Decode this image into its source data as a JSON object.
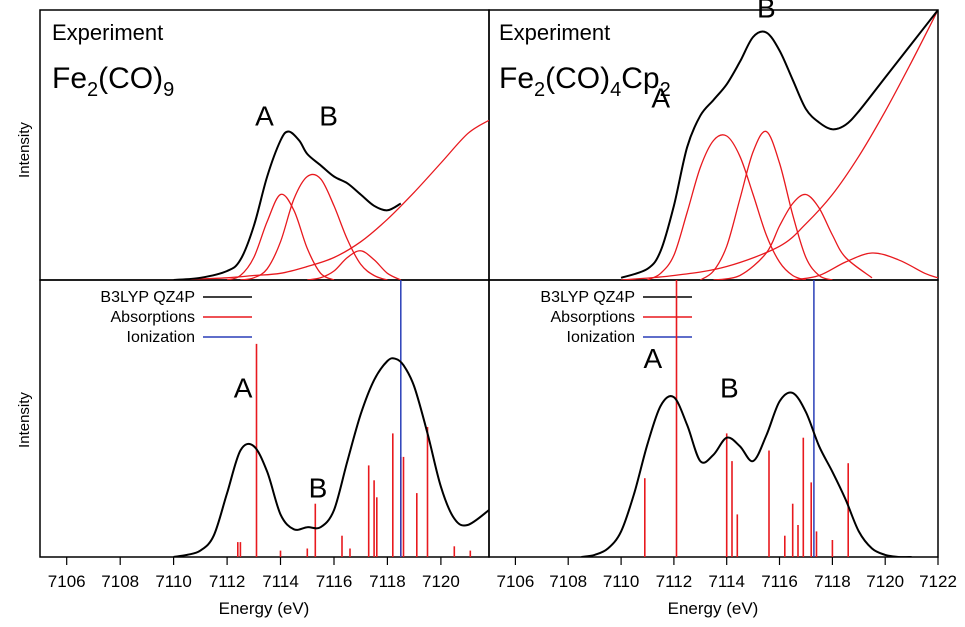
{
  "figure": {
    "ylabel": "Intensity",
    "xlabel": "Energy (eV)"
  },
  "colors": {
    "total": "#000000",
    "components": "#e8191e",
    "ionization": "#2a3fb8"
  },
  "chart_data": [
    {
      "type": "line",
      "panel": "top-left",
      "title": "Experiment",
      "compound": {
        "base": [
          "Fe",
          "(CO)"
        ],
        "subs": [
          "2",
          "9"
        ]
      },
      "xlim": [
        7105,
        7121.8
      ],
      "ylabel": "Intensity",
      "peak_labels": [
        {
          "text": "A",
          "x": 7113.4,
          "y": 0.66
        },
        {
          "text": "B",
          "x": 7115.8,
          "y": 0.66
        }
      ],
      "series": [
        {
          "role": "total",
          "x": [
            7110,
            7111,
            7112,
            7112.5,
            7113,
            7113.5,
            7114,
            7114.3,
            7114.7,
            7115,
            7115.5,
            7116,
            7116.5,
            7117,
            7117.5,
            7118,
            7118.5
          ],
          "values": [
            0,
            0.01,
            0.04,
            0.09,
            0.24,
            0.46,
            0.62,
            0.66,
            0.62,
            0.56,
            0.51,
            0.46,
            0.43,
            0.38,
            0.33,
            0.31,
            0.34
          ]
        },
        {
          "role": "component",
          "x": [
            7112,
            7112.5,
            7113,
            7113.5,
            7114,
            7114.5,
            7115,
            7115.5,
            7116
          ],
          "values": [
            0,
            0.02,
            0.1,
            0.26,
            0.38,
            0.31,
            0.14,
            0.03,
            0
          ]
        },
        {
          "role": "component",
          "x": [
            7112.5,
            7113,
            7113.5,
            7114,
            7114.5,
            7115,
            7115.5,
            7116,
            7116.5,
            7117,
            7117.5,
            7118
          ],
          "values": [
            0,
            0.01,
            0.05,
            0.17,
            0.36,
            0.46,
            0.45,
            0.33,
            0.18,
            0.07,
            0.02,
            0
          ]
        },
        {
          "role": "component",
          "x": [
            7115,
            7115.5,
            7116,
            7116.5,
            7117,
            7117.5,
            7118,
            7118.5
          ],
          "values": [
            0,
            0.01,
            0.04,
            0.1,
            0.13,
            0.09,
            0.03,
            0
          ]
        },
        {
          "role": "component",
          "x": [
            7110,
            7111,
            7112,
            7113,
            7114,
            7115,
            7116,
            7117,
            7118,
            7119,
            7120,
            7121,
            7121.8
          ],
          "values": [
            0,
            0.005,
            0.01,
            0.02,
            0.03,
            0.06,
            0.1,
            0.17,
            0.27,
            0.39,
            0.52,
            0.65,
            0.71
          ]
        }
      ]
    },
    {
      "type": "line",
      "panel": "top-right",
      "title": "Experiment",
      "compound": {
        "base": [
          "Fe",
          "(CO)",
          "Cp"
        ],
        "subs": [
          "2",
          "4",
          "2"
        ]
      },
      "xlim": [
        7105,
        7122
      ],
      "ylabel": "",
      "peak_labels": [
        {
          "text": "A",
          "x": 7111.5,
          "y": 0.74
        },
        {
          "text": "B",
          "x": 7115.5,
          "y": 1.14
        }
      ],
      "series": [
        {
          "role": "total",
          "x": [
            7110,
            7111,
            7111.5,
            7112,
            7112.5,
            7113,
            7113.5,
            7114,
            7114.5,
            7115,
            7115.5,
            7116,
            7116.5,
            7117,
            7117.5,
            7118,
            7118.5,
            7119,
            7120,
            7121,
            7122
          ],
          "values": [
            0.01,
            0.05,
            0.13,
            0.33,
            0.59,
            0.73,
            0.8,
            0.87,
            0.97,
            1.08,
            1.1,
            1.02,
            0.89,
            0.76,
            0.7,
            0.67,
            0.69,
            0.75,
            0.9,
            1.05,
            1.2
          ]
        },
        {
          "role": "component",
          "x": [
            7111,
            7111.5,
            7112,
            7112.5,
            7113,
            7113.5,
            7114,
            7114.5,
            7115,
            7115.5,
            7116,
            7116.5,
            7117
          ],
          "values": [
            0,
            0.03,
            0.11,
            0.3,
            0.5,
            0.62,
            0.64,
            0.55,
            0.38,
            0.2,
            0.08,
            0.02,
            0
          ]
        },
        {
          "role": "component",
          "x": [
            7113,
            7113.5,
            7114,
            7114.5,
            7115,
            7115.5,
            7116,
            7116.5,
            7117,
            7117.5,
            7118
          ],
          "values": [
            0,
            0.04,
            0.15,
            0.36,
            0.57,
            0.66,
            0.52,
            0.29,
            0.1,
            0.02,
            0
          ]
        },
        {
          "role": "component",
          "x": [
            7113.5,
            7114.5,
            7115.5,
            7116,
            7116.5,
            7117,
            7117.5,
            7118,
            7118.5,
            7119.5
          ],
          "values": [
            0,
            0.02,
            0.12,
            0.24,
            0.34,
            0.38,
            0.32,
            0.2,
            0.1,
            0.01
          ]
        },
        {
          "role": "component",
          "x": [
            7116.5,
            7117.5,
            7118.5,
            7119.5,
            7120.5,
            7121.5,
            7122
          ],
          "values": [
            0,
            0.02,
            0.08,
            0.12,
            0.09,
            0.03,
            0.01
          ]
        },
        {
          "role": "component",
          "x": [
            7110,
            7112,
            7114,
            7116,
            7117,
            7118,
            7119,
            7120,
            7121,
            7122
          ],
          "values": [
            0,
            0.02,
            0.06,
            0.15,
            0.25,
            0.38,
            0.55,
            0.75,
            0.97,
            1.2
          ]
        }
      ]
    },
    {
      "type": "line",
      "panel": "bottom-left",
      "title": "",
      "xlim": [
        7105,
        7121.8
      ],
      "xticks": [
        7106,
        7108,
        7110,
        7112,
        7114,
        7116,
        7118,
        7120
      ],
      "xlabel": "Energy (eV)",
      "ylabel": "Intensity",
      "legend": {
        "position": "top-left",
        "entries": [
          "B3LYP QZ4P",
          "Absorptions",
          "Ionization"
        ]
      },
      "peak_labels": [
        {
          "text": "A",
          "x": 7112.6,
          "y": 0.72
        },
        {
          "text": "B",
          "x": 7115.4,
          "y": 0.25
        }
      ],
      "ionization_energy": 7118.5,
      "series": [
        {
          "role": "total",
          "x": [
            7110,
            7110.5,
            7111,
            7111.5,
            7112,
            7112.5,
            7113,
            7113.5,
            7114,
            7114.5,
            7115,
            7115.5,
            7116,
            7116.5,
            7117,
            7117.5,
            7118,
            7118.3,
            7118.6,
            7119,
            7119.5,
            7120,
            7120.5,
            7121,
            7121.8
          ],
          "values": [
            0,
            0.01,
            0.03,
            0.1,
            0.3,
            0.5,
            0.52,
            0.4,
            0.2,
            0.13,
            0.14,
            0.14,
            0.22,
            0.45,
            0.67,
            0.83,
            0.92,
            0.93,
            0.9,
            0.8,
            0.58,
            0.33,
            0.18,
            0.15,
            0.22
          ]
        }
      ],
      "sticks": {
        "x": [
          7112.4,
          7112.5,
          7113.1,
          7114,
          7115,
          7115.3,
          7116.3,
          7116.6,
          7117.3,
          7117.5,
          7117.6,
          7118.2,
          7118.5,
          7118.6,
          7119.1,
          7119.5,
          7120.5,
          7121.1
        ],
        "values": [
          0.07,
          0.07,
          1.0,
          0.03,
          0.04,
          0.25,
          0.1,
          0.04,
          0.43,
          0.36,
          0.28,
          0.58,
          0.47,
          0.47,
          0.3,
          0.61,
          0.05,
          0.03
        ]
      }
    },
    {
      "type": "line",
      "panel": "bottom-right",
      "title": "",
      "xlim": [
        7105,
        7122
      ],
      "xticks": [
        7106,
        7108,
        7110,
        7112,
        7114,
        7116,
        7118,
        7120,
        7122
      ],
      "xlabel": "Energy (eV)",
      "ylabel": "",
      "legend": {
        "position": "top-left",
        "entries": [
          "B3LYP QZ4P",
          "Absorptions",
          "Ionization"
        ]
      },
      "peak_labels": [
        {
          "text": "A",
          "x": 7111.2,
          "y": 0.86
        },
        {
          "text": "B",
          "x": 7114.1,
          "y": 0.72
        }
      ],
      "ionization_energy": 7117.3,
      "series": [
        {
          "role": "total",
          "x": [
            7108.5,
            7109,
            7109.5,
            7110,
            7110.5,
            7111,
            7111.5,
            7112,
            7112.5,
            7113,
            7113.5,
            7114,
            7114.5,
            7115,
            7115.5,
            7116,
            7116.5,
            7117,
            7117.5,
            7118,
            7118.5,
            7119,
            7119.5,
            7120,
            7120.5,
            7121
          ],
          "values": [
            0,
            0.01,
            0.04,
            0.12,
            0.3,
            0.53,
            0.71,
            0.75,
            0.62,
            0.45,
            0.48,
            0.56,
            0.52,
            0.45,
            0.57,
            0.73,
            0.77,
            0.68,
            0.52,
            0.4,
            0.27,
            0.12,
            0.04,
            0.01,
            0,
            0
          ]
        }
      ],
      "sticks": {
        "x": [
          7110.9,
          7112.1,
          7114,
          7114.2,
          7114.4,
          7115.6,
          7116.2,
          7116.5,
          7116.7,
          7116.9,
          7117.2,
          7117.4,
          7118,
          7118.6
        ],
        "values": [
          0.37,
          1.3,
          0.58,
          0.45,
          0.2,
          0.5,
          0.1,
          0.25,
          0.15,
          0.56,
          0.35,
          0.12,
          0.08,
          0.44
        ]
      }
    }
  ]
}
